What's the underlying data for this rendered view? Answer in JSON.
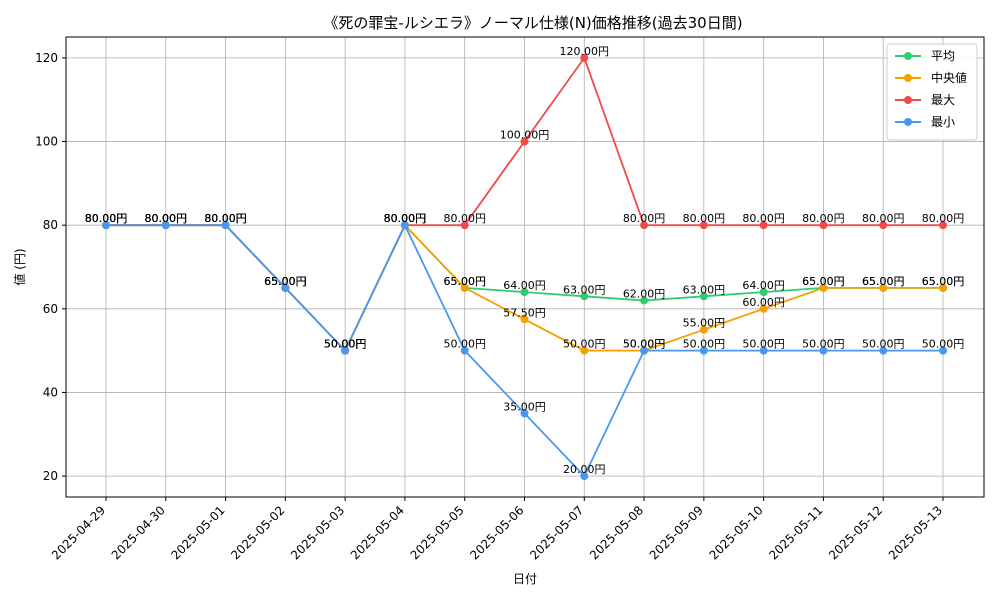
{
  "chart_data": {
    "type": "line",
    "title": "《死の罪宝-ルシエラ》ノーマル仕様(N)価格推移(過去30日間)",
    "xlabel": "日付",
    "ylabel": "値 (円)",
    "ylim": [
      15,
      125
    ],
    "yticks": [
      20,
      40,
      60,
      80,
      100,
      120
    ],
    "grid": true,
    "legend_position": "top-right",
    "value_suffix": "円",
    "categories": [
      "2025-04-29",
      "2025-04-30",
      "2025-05-01",
      "2025-05-02",
      "2025-05-03",
      "2025-05-04",
      "2025-05-05",
      "2025-05-06",
      "2025-05-07",
      "2025-05-08",
      "2025-05-09",
      "2025-05-10",
      "2025-05-11",
      "2025-05-12",
      "2025-05-13"
    ],
    "series": [
      {
        "name": "平均",
        "color": "#2ecc71",
        "values": [
          80,
          80,
          80,
          65,
          50,
          80,
          65,
          64,
          63,
          62,
          63,
          64,
          65,
          65,
          65
        ]
      },
      {
        "name": "中央値",
        "color": "#f5a000",
        "values": [
          80,
          80,
          80,
          65,
          50,
          80,
          65,
          57.5,
          50,
          50,
          55,
          60,
          65,
          65,
          65
        ]
      },
      {
        "name": "最大",
        "color": "#ef4b4b",
        "values": [
          80,
          80,
          80,
          65,
          50,
          80,
          80,
          100,
          120,
          80,
          80,
          80,
          80,
          80,
          80
        ]
      },
      {
        "name": "最小",
        "color": "#4a97f0",
        "values": [
          80,
          80,
          80,
          65,
          50,
          80,
          50,
          35,
          20,
          50,
          50,
          50,
          50,
          50,
          50
        ]
      }
    ]
  }
}
